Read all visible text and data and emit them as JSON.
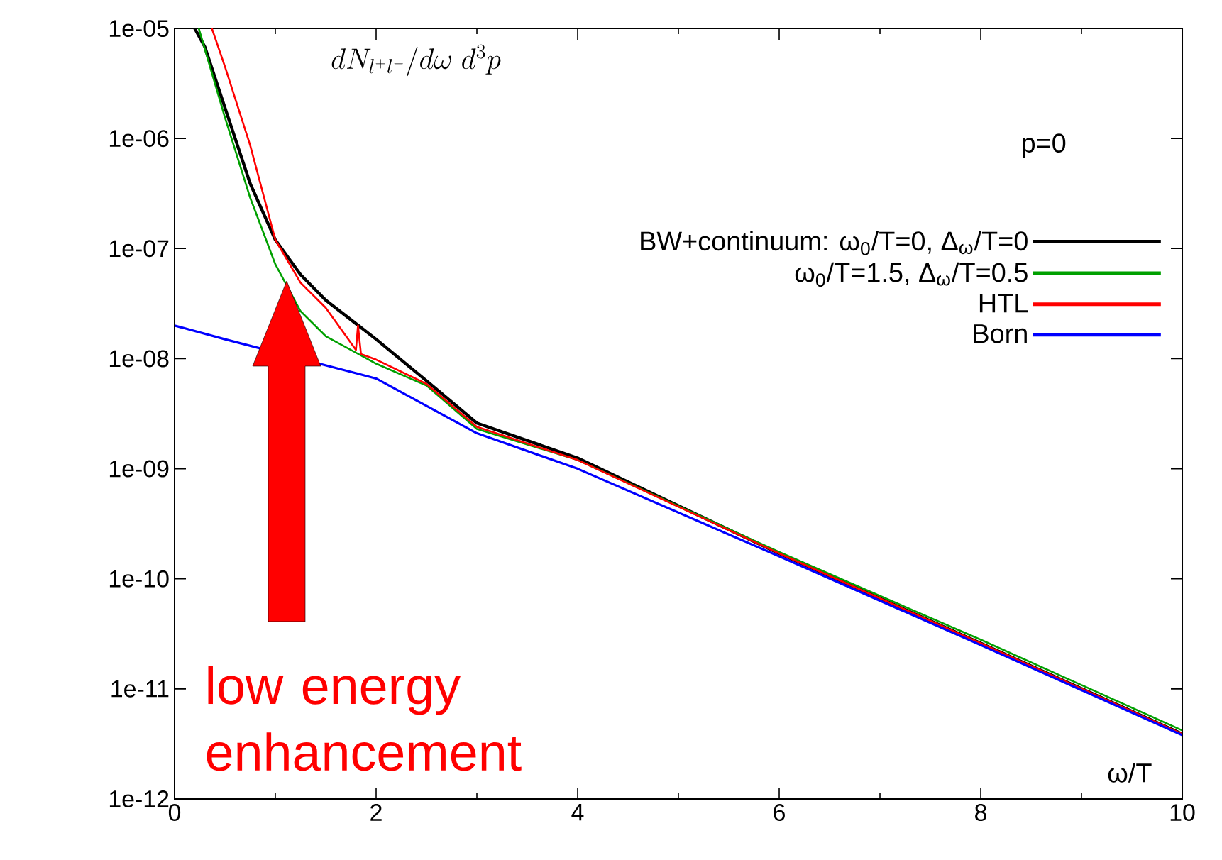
{
  "chart_data": {
    "type": "line",
    "ylabel": "dN_{l^+l^-}/d\\omega\\; d^3p",
    "xlabel": "ω/T",
    "log": "y",
    "xlim": [
      0,
      10
    ],
    "xticks": [
      0,
      2,
      4,
      6,
      8,
      10
    ],
    "ylim": [
      1e-12,
      1e-05
    ],
    "yticks": [
      {
        "value": 1e-12,
        "label": "1e-12"
      },
      {
        "value": 1e-11,
        "label": "1e-11"
      },
      {
        "value": 1e-10,
        "label": "1e-10"
      },
      {
        "value": 1e-09,
        "label": "1e-09"
      },
      {
        "value": 1e-08,
        "label": "1e-08"
      },
      {
        "value": 1e-07,
        "label": "1e-07"
      },
      {
        "value": 1e-06,
        "label": "1e-06"
      },
      {
        "value": 1e-05,
        "label": "1e-05"
      }
    ],
    "legend": "right",
    "legend_title": "p=0",
    "grid": false,
    "annotations": [
      "low energy enhancement"
    ],
    "series": [
      {
        "name": "BW+continuum: ω$_{0}$/T=0, Δ$_{ω}$/T=0",
        "color": "#000000",
        "x": [
          0.2,
          0.3,
          0.5,
          0.75,
          1,
          1.25,
          1.5,
          2,
          2.5,
          3,
          4,
          6,
          8,
          10
        ],
        "values": [
          1e-05,
          6.8e-06,
          1.9e-06,
          3.9e-07,
          1.2e-07,
          5.8e-08,
          3.4e-08,
          1.5e-08,
          6.3e-09,
          2.6e-09,
          1.25e-09,
          1.7e-10,
          2.6e-11,
          3.9e-12
        ]
      },
      {
        "name": "ω$_{0}$/T=1.5, Δ$_{ω}$/T=0.5",
        "color": "#00a000",
        "x": [
          0.24,
          0.5,
          0.75,
          1,
          1.25,
          1.5,
          2,
          2.5,
          3,
          4,
          6,
          8,
          10
        ],
        "values": [
          1e-05,
          1.55e-06,
          2.9e-07,
          7.2e-08,
          2.7e-08,
          1.6e-08,
          9e-09,
          5.7e-09,
          2.3e-09,
          1.2e-09,
          1.75e-10,
          2.8e-11,
          4.2e-12
        ]
      },
      {
        "name": "HTL",
        "color": "#ff0000",
        "x": [
          0.37,
          0.5,
          0.75,
          1,
          1.25,
          1.5,
          1.8,
          1.82,
          1.85,
          2,
          2.5,
          3,
          4,
          6,
          8,
          10
        ],
        "values": [
          1e-05,
          4.5e-06,
          8.7e-07,
          1.2e-07,
          4.9e-08,
          2.9e-08,
          1.2e-08,
          2e-08,
          1.1e-08,
          9.8e-09,
          5.9e-09,
          2.4e-09,
          1.2e-09,
          1.7e-10,
          2.6e-11,
          3.9e-12
        ]
      },
      {
        "name": "Born",
        "color": "#0000ff",
        "x": [
          0,
          0.5,
          1.7,
          2,
          3,
          4,
          6,
          8,
          10
        ],
        "values": [
          2e-08,
          1.5e-08,
          7.8e-09,
          6.6e-09,
          2.1e-09,
          1e-09,
          1.6e-10,
          2.5e-11,
          3.8e-12
        ]
      }
    ]
  }
}
